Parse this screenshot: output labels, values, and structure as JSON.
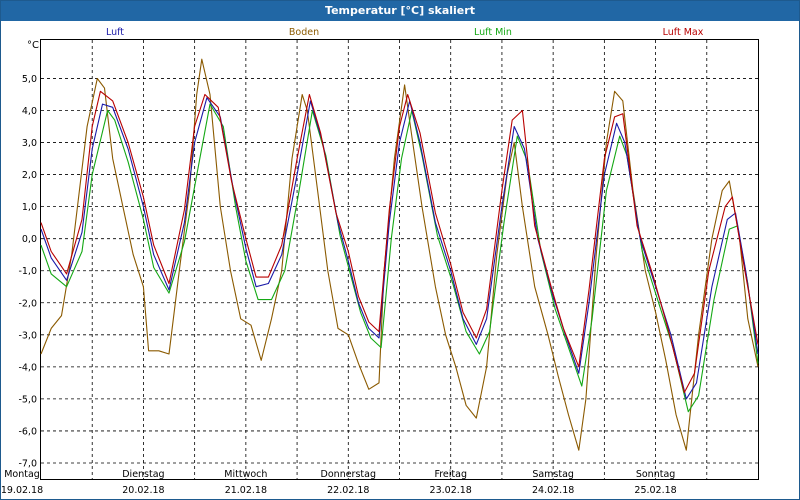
{
  "window": {
    "title": "Temperatur [°C] skaliert"
  },
  "chart_data": {
    "type": "line",
    "title": "Temperatur [°C] skaliert",
    "ylabel": "°C",
    "ylim": [
      -7.5,
      6.2
    ],
    "yticks": [
      5.0,
      4.0,
      3.0,
      2.0,
      1.0,
      0.0,
      -1.0,
      -2.0,
      -3.0,
      -4.0,
      -5.0,
      -6.0,
      -7.0
    ],
    "ytick_labels": [
      "5,0",
      "4,0",
      "3,0",
      "2,0",
      "1,0",
      "0,0",
      "-1,0",
      "-2,0",
      "-3,0",
      "-4,0",
      "-5,0",
      "-6,0",
      "-7,0"
    ],
    "xlim": [
      0,
      7
    ],
    "xgrid_step": 0.5,
    "x_day_labels": [
      {
        "x": 0,
        "day": "Montag",
        "date": "19.02.18"
      },
      {
        "x": 1,
        "day": "Dienstag",
        "date": "20.02.18"
      },
      {
        "x": 2,
        "day": "Mittwoch",
        "date": "21.02.18"
      },
      {
        "x": 3,
        "day": "Donnerstag",
        "date": "22.02.18"
      },
      {
        "x": 4,
        "day": "Freitag",
        "date": "23.02.18"
      },
      {
        "x": 5,
        "day": "Samstag",
        "date": "24.02.18"
      },
      {
        "x": 6,
        "day": "Sonntag",
        "date": "25.02.18"
      }
    ],
    "grid": true,
    "series": [
      {
        "name": "Luft",
        "color": "#1a1aa8",
        "points": [
          [
            0,
            0.3
          ],
          [
            0.1,
            -0.6
          ],
          [
            0.25,
            -1.3
          ],
          [
            0.4,
            0.2
          ],
          [
            0.5,
            2.8
          ],
          [
            0.6,
            4.2
          ],
          [
            0.7,
            4.1
          ],
          [
            0.85,
            2.8
          ],
          [
            1.0,
            1.0
          ],
          [
            1.1,
            -0.5
          ],
          [
            1.25,
            -1.6
          ],
          [
            1.4,
            0.5
          ],
          [
            1.5,
            3.0
          ],
          [
            1.62,
            4.4
          ],
          [
            1.75,
            3.8
          ],
          [
            1.88,
            1.5
          ],
          [
            2.0,
            -0.3
          ],
          [
            2.1,
            -1.5
          ],
          [
            2.22,
            -1.4
          ],
          [
            2.35,
            -0.5
          ],
          [
            2.5,
            2.0
          ],
          [
            2.63,
            4.3
          ],
          [
            2.75,
            3.0
          ],
          [
            2.9,
            0.5
          ],
          [
            3.0,
            -0.7
          ],
          [
            3.1,
            -2.0
          ],
          [
            3.2,
            -2.8
          ],
          [
            3.3,
            -3.1
          ],
          [
            3.4,
            0.5
          ],
          [
            3.5,
            3.0
          ],
          [
            3.6,
            4.3
          ],
          [
            3.7,
            3.0
          ],
          [
            3.85,
            0.5
          ],
          [
            4.0,
            -1.0
          ],
          [
            4.12,
            -2.5
          ],
          [
            4.25,
            -3.3
          ],
          [
            4.35,
            -2.5
          ],
          [
            4.5,
            1.0
          ],
          [
            4.62,
            3.5
          ],
          [
            4.72,
            2.8
          ],
          [
            4.85,
            0.0
          ],
          [
            5.0,
            -1.8
          ],
          [
            5.12,
            -3.0
          ],
          [
            5.25,
            -4.2
          ],
          [
            5.35,
            -2.0
          ],
          [
            5.5,
            2.0
          ],
          [
            5.62,
            3.6
          ],
          [
            5.7,
            3.0
          ],
          [
            5.85,
            0.0
          ],
          [
            6.0,
            -1.5
          ],
          [
            6.15,
            -3.0
          ],
          [
            6.3,
            -5.0
          ],
          [
            6.4,
            -4.5
          ],
          [
            6.55,
            -1.5
          ],
          [
            6.7,
            0.6
          ],
          [
            6.78,
            0.8
          ],
          [
            6.88,
            -1.0
          ],
          [
            7.0,
            -3.6
          ]
        ]
      },
      {
        "name": "Boden",
        "color": "#8b5a00",
        "points": [
          [
            0,
            -3.6
          ],
          [
            0.1,
            -2.8
          ],
          [
            0.2,
            -2.4
          ],
          [
            0.3,
            -0.5
          ],
          [
            0.45,
            3.5
          ],
          [
            0.55,
            5.0
          ],
          [
            0.62,
            4.7
          ],
          [
            0.7,
            2.5
          ],
          [
            0.8,
            1.0
          ],
          [
            0.9,
            -0.5
          ],
          [
            1.0,
            -1.5
          ],
          [
            1.05,
            -3.5
          ],
          [
            1.15,
            -3.5
          ],
          [
            1.25,
            -3.6
          ],
          [
            1.35,
            -1.0
          ],
          [
            1.45,
            1.5
          ],
          [
            1.52,
            4.5
          ],
          [
            1.57,
            5.6
          ],
          [
            1.65,
            4.5
          ],
          [
            1.75,
            1.0
          ],
          [
            1.85,
            -1.0
          ],
          [
            1.95,
            -2.5
          ],
          [
            2.05,
            -2.7
          ],
          [
            2.15,
            -3.8
          ],
          [
            2.25,
            -2.5
          ],
          [
            2.35,
            -1.0
          ],
          [
            2.45,
            2.5
          ],
          [
            2.55,
            4.5
          ],
          [
            2.6,
            4.0
          ],
          [
            2.7,
            1.5
          ],
          [
            2.8,
            -1.0
          ],
          [
            2.9,
            -2.8
          ],
          [
            3.0,
            -3.0
          ],
          [
            3.1,
            -3.9
          ],
          [
            3.2,
            -4.7
          ],
          [
            3.3,
            -4.5
          ],
          [
            3.35,
            -1.0
          ],
          [
            3.45,
            2.5
          ],
          [
            3.55,
            4.8
          ],
          [
            3.62,
            3.2
          ],
          [
            3.72,
            1.0
          ],
          [
            3.85,
            -1.5
          ],
          [
            3.95,
            -3.0
          ],
          [
            4.05,
            -4.0
          ],
          [
            4.15,
            -5.2
          ],
          [
            4.25,
            -5.6
          ],
          [
            4.35,
            -4.0
          ],
          [
            4.45,
            -0.5
          ],
          [
            4.55,
            2.0
          ],
          [
            4.62,
            3.0
          ],
          [
            4.7,
            1.0
          ],
          [
            4.82,
            -1.5
          ],
          [
            4.95,
            -3.0
          ],
          [
            5.05,
            -4.3
          ],
          [
            5.15,
            -5.5
          ],
          [
            5.25,
            -6.6
          ],
          [
            5.32,
            -5.0
          ],
          [
            5.42,
            -0.5
          ],
          [
            5.52,
            3.0
          ],
          [
            5.6,
            4.6
          ],
          [
            5.68,
            4.3
          ],
          [
            5.78,
            1.5
          ],
          [
            5.9,
            -1.0
          ],
          [
            6.0,
            -2.3
          ],
          [
            6.1,
            -3.8
          ],
          [
            6.2,
            -5.5
          ],
          [
            6.3,
            -6.6
          ],
          [
            6.42,
            -3.0
          ],
          [
            6.55,
            0.0
          ],
          [
            6.65,
            1.5
          ],
          [
            6.72,
            1.8
          ],
          [
            6.82,
            0.0
          ],
          [
            6.9,
            -2.5
          ],
          [
            7.0,
            -4.0
          ]
        ]
      },
      {
        "name": "Luft Min",
        "color": "#14a814",
        "points": [
          [
            0,
            -0.2
          ],
          [
            0.1,
            -1.1
          ],
          [
            0.25,
            -1.5
          ],
          [
            0.4,
            -0.4
          ],
          [
            0.5,
            2.0
          ],
          [
            0.65,
            4.0
          ],
          [
            0.72,
            3.7
          ],
          [
            0.85,
            2.4
          ],
          [
            1.0,
            0.6
          ],
          [
            1.1,
            -0.9
          ],
          [
            1.25,
            -1.7
          ],
          [
            1.4,
            -0.1
          ],
          [
            1.55,
            2.5
          ],
          [
            1.65,
            4.2
          ],
          [
            1.78,
            3.5
          ],
          [
            1.9,
            1.0
          ],
          [
            2.0,
            -0.7
          ],
          [
            2.12,
            -1.9
          ],
          [
            2.25,
            -1.9
          ],
          [
            2.38,
            -1.0
          ],
          [
            2.52,
            1.5
          ],
          [
            2.65,
            4.0
          ],
          [
            2.78,
            2.6
          ],
          [
            2.92,
            0.1
          ],
          [
            3.02,
            -1.1
          ],
          [
            3.12,
            -2.3
          ],
          [
            3.22,
            -3.1
          ],
          [
            3.32,
            -3.4
          ],
          [
            3.42,
            0.0
          ],
          [
            3.52,
            2.5
          ],
          [
            3.62,
            4.0
          ],
          [
            3.72,
            2.6
          ],
          [
            3.87,
            0.1
          ],
          [
            4.02,
            -1.4
          ],
          [
            4.15,
            -2.9
          ],
          [
            4.28,
            -3.6
          ],
          [
            4.38,
            -2.9
          ],
          [
            4.52,
            0.5
          ],
          [
            4.65,
            3.2
          ],
          [
            4.75,
            2.4
          ],
          [
            4.88,
            -0.4
          ],
          [
            5.02,
            -2.2
          ],
          [
            5.15,
            -3.4
          ],
          [
            5.28,
            -4.6
          ],
          [
            5.38,
            -2.5
          ],
          [
            5.52,
            1.5
          ],
          [
            5.65,
            3.2
          ],
          [
            5.72,
            2.6
          ],
          [
            5.87,
            -0.4
          ],
          [
            6.02,
            -1.9
          ],
          [
            6.17,
            -3.4
          ],
          [
            6.32,
            -5.4
          ],
          [
            6.42,
            -4.9
          ],
          [
            6.57,
            -1.9
          ],
          [
            6.72,
            0.3
          ],
          [
            6.8,
            0.4
          ],
          [
            6.9,
            -1.4
          ],
          [
            7.0,
            -3.9
          ]
        ]
      },
      {
        "name": "Luft Max",
        "color": "#b80000",
        "points": [
          [
            0,
            0.5
          ],
          [
            0.1,
            -0.4
          ],
          [
            0.25,
            -1.1
          ],
          [
            0.4,
            0.6
          ],
          [
            0.5,
            3.5
          ],
          [
            0.58,
            4.6
          ],
          [
            0.7,
            4.3
          ],
          [
            0.85,
            3.0
          ],
          [
            1.0,
            1.3
          ],
          [
            1.1,
            -0.2
          ],
          [
            1.25,
            -1.4
          ],
          [
            1.4,
            0.9
          ],
          [
            1.5,
            3.5
          ],
          [
            1.6,
            4.5
          ],
          [
            1.73,
            4.1
          ],
          [
            1.86,
            1.8
          ],
          [
            2.0,
            0.0
          ],
          [
            2.1,
            -1.2
          ],
          [
            2.22,
            -1.2
          ],
          [
            2.35,
            -0.2
          ],
          [
            2.5,
            2.5
          ],
          [
            2.62,
            4.5
          ],
          [
            2.73,
            3.3
          ],
          [
            2.88,
            0.8
          ],
          [
            3.0,
            -0.4
          ],
          [
            3.1,
            -1.8
          ],
          [
            3.2,
            -2.6
          ],
          [
            3.3,
            -2.9
          ],
          [
            3.4,
            0.9
          ],
          [
            3.5,
            3.5
          ],
          [
            3.58,
            4.5
          ],
          [
            3.7,
            3.3
          ],
          [
            3.85,
            0.8
          ],
          [
            4.0,
            -0.8
          ],
          [
            4.12,
            -2.3
          ],
          [
            4.25,
            -3.1
          ],
          [
            4.35,
            -2.2
          ],
          [
            4.5,
            1.5
          ],
          [
            4.6,
            3.7
          ],
          [
            4.7,
            4.0
          ],
          [
            4.82,
            0.4
          ],
          [
            4.98,
            -1.5
          ],
          [
            5.1,
            -2.8
          ],
          [
            5.25,
            -4.0
          ],
          [
            5.35,
            -1.6
          ],
          [
            5.5,
            2.5
          ],
          [
            5.6,
            3.8
          ],
          [
            5.68,
            3.9
          ],
          [
            5.82,
            0.4
          ],
          [
            5.98,
            -1.2
          ],
          [
            6.12,
            -2.8
          ],
          [
            6.28,
            -4.8
          ],
          [
            6.38,
            -4.2
          ],
          [
            6.52,
            -1.0
          ],
          [
            6.68,
            1.0
          ],
          [
            6.75,
            1.3
          ],
          [
            6.85,
            -0.6
          ],
          [
            7.0,
            -3.3
          ]
        ]
      }
    ]
  }
}
